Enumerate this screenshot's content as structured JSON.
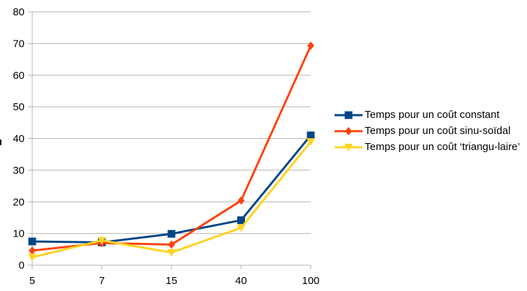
{
  "chart_data": {
    "type": "line",
    "title": "",
    "xlabel": "",
    "ylabel": "",
    "categories": [
      "5",
      "7",
      "15",
      "40",
      "100"
    ],
    "ylim": [
      0,
      80
    ],
    "yticks": [
      0,
      10,
      20,
      30,
      40,
      50,
      60,
      70,
      80
    ],
    "grid": "horizontal",
    "legend_position": "right",
    "series": [
      {
        "name": "Temps pour un coût constant",
        "values": [
          7.5,
          7.2,
          9.9,
          14.2,
          41.0
        ],
        "color": "#004586",
        "marker": "square"
      },
      {
        "name": "Temps pour un coût sinu-soïdal",
        "values": [
          4.6,
          7.0,
          6.5,
          20.4,
          69.3
        ],
        "color": "#ff420e",
        "marker": "diamond"
      },
      {
        "name": "Temps pour un coût ‘triangu-laire’",
        "values": [
          2.5,
          7.8,
          4.0,
          11.8,
          39.0
        ],
        "color": "#ffd320",
        "marker": "triangle-down"
      }
    ]
  }
}
